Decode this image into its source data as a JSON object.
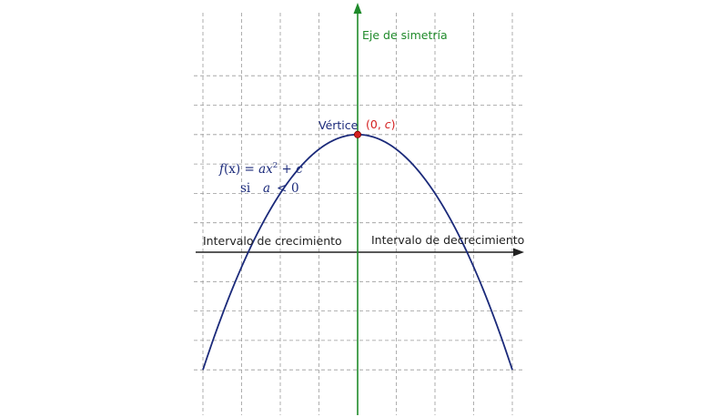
{
  "labels": {
    "axis_of_symmetry": "Eje de simetría",
    "vertex": "Vértice",
    "vertex_coord_open": "(0, ",
    "vertex_coord_var": "c",
    "vertex_coord_close": ")",
    "increasing_interval": "Intervalo de crecimiento",
    "decreasing_interval": "Intervalo de decrecimiento"
  },
  "formula": {
    "fx": "f",
    "paren_x": "(x)",
    "equals": " = ",
    "a": "a",
    "x": "x",
    "exponent": "2",
    "plus": " + ",
    "c": "c",
    "condition_si": "si",
    "condition_a": "a",
    "condition_lt": "<",
    "condition_zero": "0"
  },
  "colors": {
    "grid": "#9a9a9a",
    "axis_x": "#222222",
    "axis_symmetry": "#1f8a2a",
    "parabola": "#1b2a7a",
    "vertex_point": "#d42020",
    "vertex_label": "#1b2a7a",
    "vertex_coord": "#d42020",
    "formula": "#1b2a7a",
    "interval_text": "#222222"
  },
  "chart_data": {
    "type": "line",
    "function": "f(x) = a x^2 + c",
    "condition": "a < 0",
    "x_range": [
      -4.5,
      4
    ],
    "y_range": [
      -4,
      6.5
    ],
    "grid": true,
    "curve": {
      "a": -0.5,
      "c": 4
    },
    "vertex": {
      "x": 0,
      "y": 4
    }
  }
}
